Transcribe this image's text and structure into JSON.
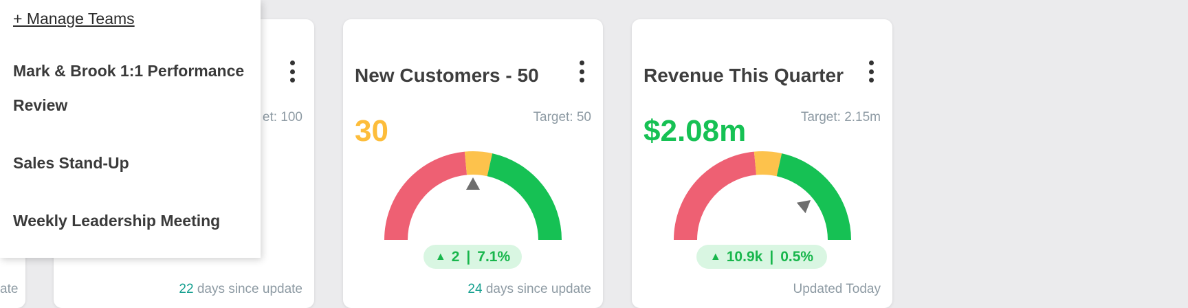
{
  "colors": {
    "red": "#ee6073",
    "yellow": "#fdc24c",
    "green": "#16c154",
    "needle": "#6e6e6e",
    "value_orange": "#fdbd3b",
    "value_green": "#16c154"
  },
  "left_card": {
    "footer_tail": "ate"
  },
  "card1": {
    "target_fragment": "et: 100",
    "footer_days": "22",
    "footer_text": " days since update"
  },
  "card2": {
    "title": "New Customers - 50",
    "target": "Target: 50",
    "value": "30",
    "gauge_needle_fraction": 0.5,
    "delta_amount": "2",
    "delta_pct": "7.1%",
    "delta_sep": "|",
    "footer_days": "24",
    "footer_text": " days since update"
  },
  "card3": {
    "title": "Revenue This Quarter",
    "target": "Target: 2.15m",
    "value": "$2.08m",
    "gauge_needle_fraction": 0.78,
    "delta_amount": "10.9k",
    "delta_pct": "0.5%",
    "delta_sep": "|",
    "footer": "Updated Today"
  },
  "dropdown": {
    "manage_label": "+ Manage Teams",
    "items": [
      {
        "label": "Mark & Brook 1:1 Performance Review"
      },
      {
        "label": "Sales Stand-Up"
      },
      {
        "label": "Weekly Leadership Meeting"
      }
    ]
  },
  "icons": {
    "kebab": "more-vertical-icon",
    "delta_arrow": "triangle-up-icon",
    "needle": "triangle-icon"
  }
}
